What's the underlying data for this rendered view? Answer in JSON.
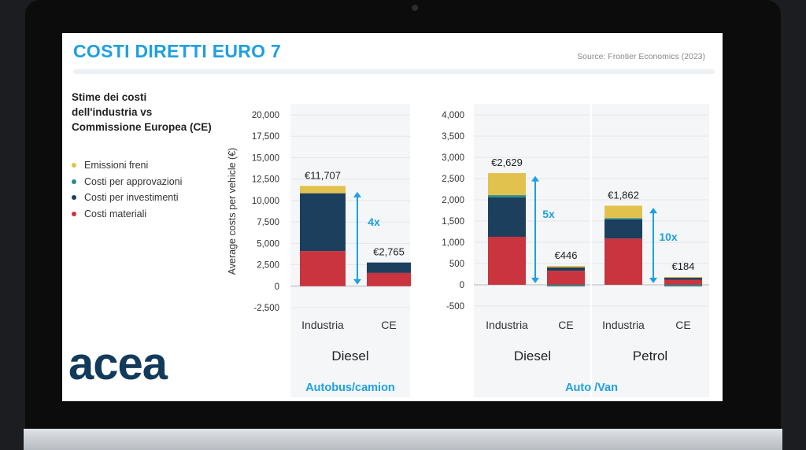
{
  "slide": {
    "title": "COSTI DIRETTI EURO 7",
    "source": "Source: Frontier Economics (2023)",
    "subtitle": "Stime dei costi\ndell'industria vs\nCommissione Europea (CE)",
    "logo": "acea"
  },
  "legend": [
    {
      "label": "Emissioni freni",
      "color": "#e2c24f"
    },
    {
      "label": "Costi per approvazioni",
      "color": "#2a8c8a"
    },
    {
      "label": "Costi per investimenti",
      "color": "#1c3f5e"
    },
    {
      "label": "Costi materiali",
      "color": "#c9343f"
    }
  ],
  "colors": {
    "arrow": "#1ea0e0",
    "group_label": "#1ea0e0"
  },
  "chart_data": [
    {
      "type": "bar",
      "stacked": true,
      "group_label": "Autobus/camion",
      "ylabel": "Average costs per vehicle (€)",
      "ylim": [
        -2500,
        20000
      ],
      "ticks": [
        20000,
        17500,
        15000,
        12500,
        10000,
        7500,
        5000,
        2500,
        0,
        -2500
      ],
      "tick_labels": [
        "20,000",
        "17,500",
        "15,000",
        "12,500",
        "10,000",
        "7,500",
        "5,000",
        "2,500",
        "0",
        "-2,500"
      ],
      "fuels": [
        {
          "name": "Diesel",
          "categories": [
            "Industria",
            "CE"
          ]
        }
      ],
      "bars": [
        {
          "category": "Industria",
          "fuel": "Diesel",
          "total_label": "€11,707",
          "segments": {
            "Costi materiali": 4100,
            "Costi per investimenti": 6750,
            "Costi per approvazioni": 0,
            "Emissioni freni": 857
          }
        },
        {
          "category": "CE",
          "fuel": "Diesel",
          "total_label": "€2,765",
          "segments": {
            "Costi materiali": 1550,
            "Costi per investimenti": 1215,
            "Costi per approvazioni": 0,
            "Emissioni freni": 0
          }
        }
      ],
      "annotations": [
        {
          "label": "4x",
          "from": 0,
          "to": 11200
        }
      ]
    },
    {
      "type": "bar",
      "stacked": true,
      "group_label": "Auto /Van",
      "ylim": [
        -500,
        4000
      ],
      "ticks": [
        4000,
        3500,
        3000,
        2500,
        2000,
        1500,
        1000,
        500,
        0,
        -500
      ],
      "tick_labels": [
        "4,000",
        "3,500",
        "3,000",
        "2,500",
        "2,000",
        "1,500",
        "1,000",
        "500",
        "0",
        "-500"
      ],
      "fuels": [
        {
          "name": "Diesel",
          "categories": [
            "Industria",
            "CE"
          ]
        },
        {
          "name": "Petrol",
          "categories": [
            "Industria",
            "CE"
          ]
        }
      ],
      "bars": [
        {
          "category": "Industria",
          "fuel": "Diesel",
          "total_label": "€2,629",
          "segments": {
            "Costi materiali": 1130,
            "Costi per investimenti": 930,
            "Costi per approvazioni": 50,
            "Emissioni freni": 519
          }
        },
        {
          "category": "CE",
          "fuel": "Diesel",
          "total_label": "€446",
          "segments": {
            "Costi materiali": 330,
            "Costi per investimenti": 80,
            "Costi per approvazioni": -40,
            "Emissioni freni": 36
          }
        },
        {
          "category": "Industria",
          "fuel": "Petrol",
          "total_label": "€1,862",
          "segments": {
            "Costi materiali": 1090,
            "Costi per investimenti": 450,
            "Costi per approvazioni": 30,
            "Emissioni freni": 292
          }
        },
        {
          "category": "CE",
          "fuel": "Petrol",
          "total_label": "€184",
          "segments": {
            "Costi materiali": 120,
            "Costi per investimenti": 50,
            "Costi per approvazioni": -40,
            "Emissioni freni": 14
          }
        }
      ],
      "annotations": [
        {
          "label": "5x",
          "from": 0,
          "to": 2600
        },
        {
          "label": "10x",
          "from": 0,
          "to": 1850
        }
      ]
    }
  ]
}
